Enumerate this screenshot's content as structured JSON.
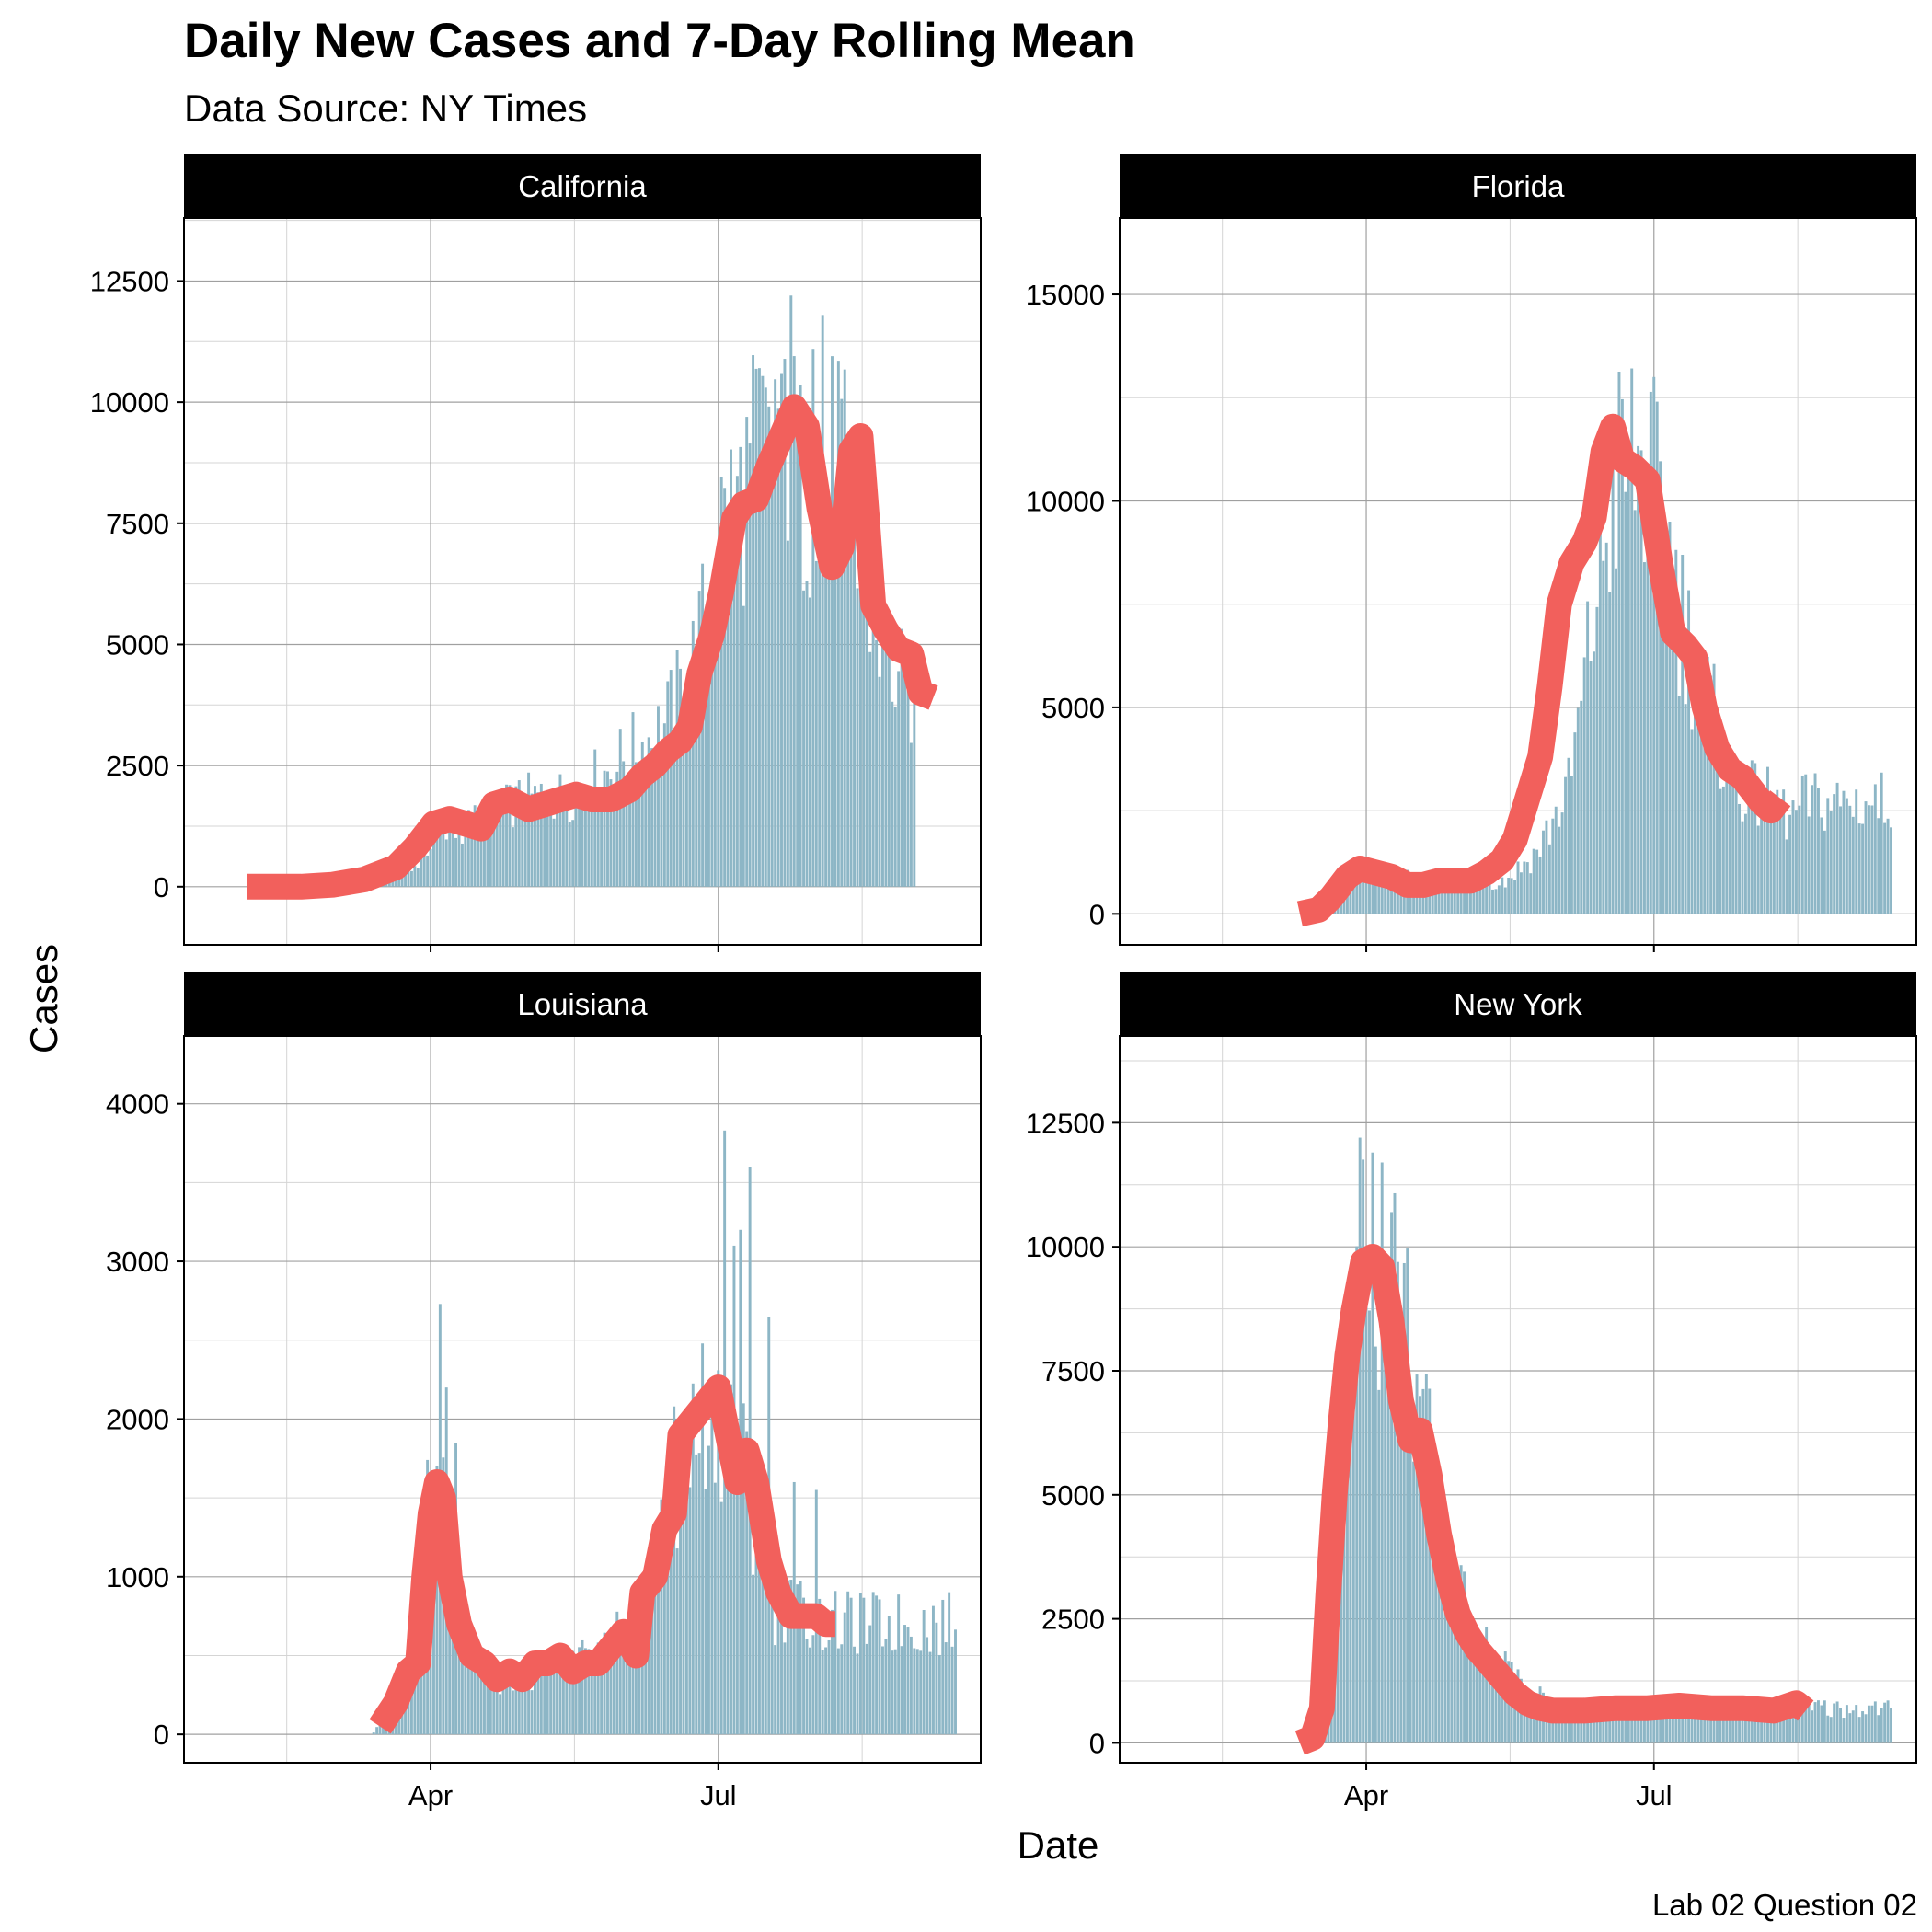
{
  "title": "Daily New Cases and 7-Day Rolling Mean",
  "subtitle": "Data Source: NY Times",
  "caption": "Lab 02 Question 02",
  "colors": {
    "bar": "#8DB6C6",
    "line": "#F2605C",
    "strip": "#000000",
    "grid_major": "#A0A0A0",
    "grid_minor": "#D5D5D5"
  },
  "chart_data": {
    "type": "bar",
    "xlabel": "Date",
    "ylabel": "Cases",
    "x_ticks": [
      "Apr",
      "Jul"
    ],
    "x_tick_days": [
      91,
      182
    ],
    "x_range_days": [
      13,
      265
    ],
    "panels": [
      {
        "name": "California",
        "ylim": [
          -1200,
          13800
        ],
        "y_ticks": [
          0,
          2500,
          5000,
          7500,
          10000,
          12500
        ],
        "bar_start_day": 75,
        "bar_end_day": 244,
        "bar_anchors": [
          [
            75,
            20
          ],
          [
            85,
            300
          ],
          [
            91,
            900
          ],
          [
            100,
            1200
          ],
          [
            110,
            1500
          ],
          [
            120,
            1800
          ],
          [
            135,
            1900
          ],
          [
            145,
            2300
          ],
          [
            155,
            2800
          ],
          [
            165,
            3300
          ],
          [
            172,
            4200
          ],
          [
            178,
            5500
          ],
          [
            183,
            7400
          ],
          [
            190,
            8100
          ],
          [
            196,
            9300
          ],
          [
            202,
            9900
          ],
          [
            208,
            8300
          ],
          [
            214,
            7800
          ],
          [
            220,
            9100
          ],
          [
            226,
            6600
          ],
          [
            232,
            5400
          ],
          [
            238,
            4300
          ],
          [
            244,
            3900
          ]
        ],
        "rolling_mean": [
          [
            33,
            0
          ],
          [
            50,
            0
          ],
          [
            60,
            40
          ],
          [
            70,
            150
          ],
          [
            80,
            400
          ],
          [
            86,
            800
          ],
          [
            92,
            1300
          ],
          [
            97,
            1400
          ],
          [
            102,
            1300
          ],
          [
            107,
            1200
          ],
          [
            111,
            1700
          ],
          [
            116,
            1800
          ],
          [
            122,
            1600
          ],
          [
            127,
            1700
          ],
          [
            132,
            1800
          ],
          [
            137,
            1900
          ],
          [
            142,
            1800
          ],
          [
            148,
            1800
          ],
          [
            154,
            2000
          ],
          [
            158,
            2300
          ],
          [
            162,
            2500
          ],
          [
            166,
            2800
          ],
          [
            170,
            3000
          ],
          [
            173,
            3300
          ],
          [
            176,
            4400
          ],
          [
            180,
            5200
          ],
          [
            183,
            6100
          ],
          [
            187,
            7600
          ],
          [
            190,
            7900
          ],
          [
            194,
            8000
          ],
          [
            198,
            8700
          ],
          [
            202,
            9300
          ],
          [
            206,
            9900
          ],
          [
            210,
            9500
          ],
          [
            214,
            7800
          ],
          [
            218,
            6600
          ],
          [
            221,
            7000
          ],
          [
            224,
            9000
          ],
          [
            227,
            9300
          ],
          [
            229,
            7600
          ],
          [
            231,
            5800
          ],
          [
            235,
            5300
          ],
          [
            239,
            4900
          ],
          [
            243,
            4800
          ],
          [
            246,
            4000
          ],
          [
            250,
            3900
          ]
        ],
        "bar_spikes": [
          [
            205,
            12200
          ],
          [
            215,
            11800
          ],
          [
            212,
            11100
          ],
          [
            197,
            10300
          ],
          [
            202,
            10600
          ]
        ]
      },
      {
        "name": "Florida",
        "ylim": [
          -750,
          16850
        ],
        "y_ticks": [
          0,
          5000,
          10000,
          15000
        ],
        "bar_start_day": 73,
        "bar_end_day": 257,
        "bar_anchors": [
          [
            73,
            20
          ],
          [
            80,
            400
          ],
          [
            85,
            1000
          ],
          [
            90,
            1100
          ],
          [
            100,
            900
          ],
          [
            110,
            700
          ],
          [
            120,
            800
          ],
          [
            135,
            800
          ],
          [
            145,
            1500
          ],
          [
            155,
            3000
          ],
          [
            160,
            5500
          ],
          [
            165,
            8500
          ],
          [
            170,
            10500
          ],
          [
            175,
            11000
          ],
          [
            180,
            10500
          ],
          [
            185,
            9500
          ],
          [
            190,
            7500
          ],
          [
            195,
            6000
          ],
          [
            200,
            5000
          ],
          [
            205,
            3500
          ],
          [
            210,
            3000
          ],
          [
            215,
            2800
          ],
          [
            220,
            2700
          ],
          [
            225,
            2300
          ],
          [
            230,
            2700
          ]
        ],
        "rolling_mean": [
          [
            70,
            0
          ],
          [
            76,
            100
          ],
          [
            80,
            400
          ],
          [
            85,
            900
          ],
          [
            89,
            1100
          ],
          [
            94,
            1000
          ],
          [
            99,
            900
          ],
          [
            104,
            700
          ],
          [
            109,
            700
          ],
          [
            114,
            800
          ],
          [
            119,
            800
          ],
          [
            124,
            800
          ],
          [
            129,
            1000
          ],
          [
            134,
            1300
          ],
          [
            138,
            1800
          ],
          [
            142,
            2800
          ],
          [
            146,
            3800
          ],
          [
            149,
            5500
          ],
          [
            152,
            7500
          ],
          [
            156,
            8500
          ],
          [
            160,
            9000
          ],
          [
            163,
            9600
          ],
          [
            166,
            11200
          ],
          [
            169,
            11800
          ],
          [
            172,
            11000
          ],
          [
            176,
            10800
          ],
          [
            180,
            10500
          ],
          [
            184,
            8500
          ],
          [
            188,
            6800
          ],
          [
            192,
            6500
          ],
          [
            195,
            6200
          ],
          [
            198,
            5000
          ],
          [
            202,
            4000
          ],
          [
            206,
            3500
          ],
          [
            210,
            3300
          ],
          [
            213,
            3000
          ],
          [
            216,
            2700
          ],
          [
            219,
            2500
          ],
          [
            222,
            2800
          ]
        ]
      },
      {
        "name": "Louisiana",
        "ylim": [
          -180,
          4430
        ],
        "y_ticks": [
          0,
          1000,
          2000,
          3000,
          4000
        ],
        "bar_start_day": 73,
        "bar_end_day": 257,
        "bar_anchors": [
          [
            73,
            10
          ],
          [
            80,
            200
          ],
          [
            85,
            400
          ],
          [
            91,
            1600
          ],
          [
            95,
            1400
          ],
          [
            100,
            700
          ],
          [
            105,
            400
          ],
          [
            115,
            350
          ],
          [
            125,
            400
          ],
          [
            135,
            450
          ],
          [
            145,
            500
          ],
          [
            155,
            700
          ],
          [
            165,
            1200
          ],
          [
            170,
            1500
          ],
          [
            175,
            1900
          ],
          [
            180,
            2200
          ],
          [
            185,
            2000
          ],
          [
            190,
            1700
          ],
          [
            195,
            1200
          ],
          [
            200,
            800
          ],
          [
            205,
            800
          ],
          [
            210,
            750
          ],
          [
            215,
            700
          ],
          [
            220,
            700
          ]
        ],
        "bar_spikes": [
          [
            94,
            2730
          ],
          [
            96,
            2200
          ],
          [
            99,
            1850
          ],
          [
            168,
            2080
          ],
          [
            180,
            2150
          ],
          [
            184,
            3830
          ],
          [
            187,
            3100
          ],
          [
            189,
            3200
          ],
          [
            192,
            3600
          ],
          [
            198,
            2650
          ],
          [
            206,
            1600
          ],
          [
            213,
            1550
          ]
        ],
        "rolling_mean": [
          [
            75,
            50
          ],
          [
            80,
            200
          ],
          [
            84,
            400
          ],
          [
            87,
            450
          ],
          [
            89,
            1000
          ],
          [
            91,
            1400
          ],
          [
            93,
            1600
          ],
          [
            95,
            1500
          ],
          [
            97,
            1000
          ],
          [
            100,
            700
          ],
          [
            104,
            500
          ],
          [
            108,
            450
          ],
          [
            112,
            350
          ],
          [
            116,
            400
          ],
          [
            120,
            350
          ],
          [
            124,
            450
          ],
          [
            128,
            450
          ],
          [
            132,
            500
          ],
          [
            136,
            400
          ],
          [
            140,
            450
          ],
          [
            144,
            450
          ],
          [
            148,
            550
          ],
          [
            152,
            650
          ],
          [
            156,
            500
          ],
          [
            158,
            900
          ],
          [
            162,
            1000
          ],
          [
            165,
            1300
          ],
          [
            168,
            1400
          ],
          [
            170,
            1900
          ],
          [
            174,
            2000
          ],
          [
            178,
            2100
          ],
          [
            182,
            2200
          ],
          [
            185,
            1900
          ],
          [
            188,
            1600
          ],
          [
            191,
            1800
          ],
          [
            194,
            1600
          ],
          [
            198,
            1100
          ],
          [
            201,
            900
          ],
          [
            205,
            750
          ],
          [
            209,
            750
          ],
          [
            213,
            750
          ],
          [
            216,
            700
          ],
          [
            219,
            700
          ]
        ]
      },
      {
        "name": "New York",
        "ylim": [
          -400,
          14250
        ],
        "y_ticks": [
          0,
          2500,
          5000,
          7500,
          10000,
          12500
        ],
        "bar_start_day": 73,
        "bar_end_day": 257,
        "bar_anchors": [
          [
            73,
            20
          ],
          [
            78,
            600
          ],
          [
            82,
            4000
          ],
          [
            86,
            7500
          ],
          [
            90,
            9500
          ],
          [
            95,
            9800
          ],
          [
            100,
            9300
          ],
          [
            105,
            8000
          ],
          [
            110,
            6000
          ],
          [
            115,
            4000
          ],
          [
            120,
            3000
          ],
          [
            125,
            2300
          ],
          [
            130,
            1800
          ],
          [
            135,
            1500
          ],
          [
            140,
            1300
          ],
          [
            145,
            1000
          ],
          [
            150,
            700
          ],
          [
            160,
            650
          ],
          [
            175,
            700
          ],
          [
            190,
            700
          ],
          [
            205,
            650
          ],
          [
            220,
            700
          ],
          [
            230,
            700
          ]
        ],
        "bar_spikes": [
          [
            89,
            12200
          ],
          [
            93,
            11900
          ],
          [
            96,
            11700
          ],
          [
            99,
            10700
          ]
        ],
        "rolling_mean": [
          [
            70,
            0
          ],
          [
            74,
            100
          ],
          [
            77,
            700
          ],
          [
            79,
            3000
          ],
          [
            81,
            5000
          ],
          [
            83,
            6500
          ],
          [
            85,
            7800
          ],
          [
            87,
            8700
          ],
          [
            90,
            9700
          ],
          [
            93,
            9800
          ],
          [
            96,
            9600
          ],
          [
            99,
            8500
          ],
          [
            102,
            6900
          ],
          [
            105,
            6100
          ],
          [
            108,
            6300
          ],
          [
            111,
            5400
          ],
          [
            114,
            4200
          ],
          [
            117,
            3300
          ],
          [
            120,
            2600
          ],
          [
            123,
            2200
          ],
          [
            126,
            1900
          ],
          [
            130,
            1600
          ],
          [
            134,
            1300
          ],
          [
            138,
            1000
          ],
          [
            142,
            800
          ],
          [
            146,
            700
          ],
          [
            150,
            650
          ],
          [
            160,
            650
          ],
          [
            170,
            700
          ],
          [
            180,
            700
          ],
          [
            190,
            750
          ],
          [
            200,
            700
          ],
          [
            210,
            700
          ],
          [
            220,
            650
          ],
          [
            227,
            800
          ],
          [
            230,
            650
          ]
        ]
      }
    ]
  }
}
